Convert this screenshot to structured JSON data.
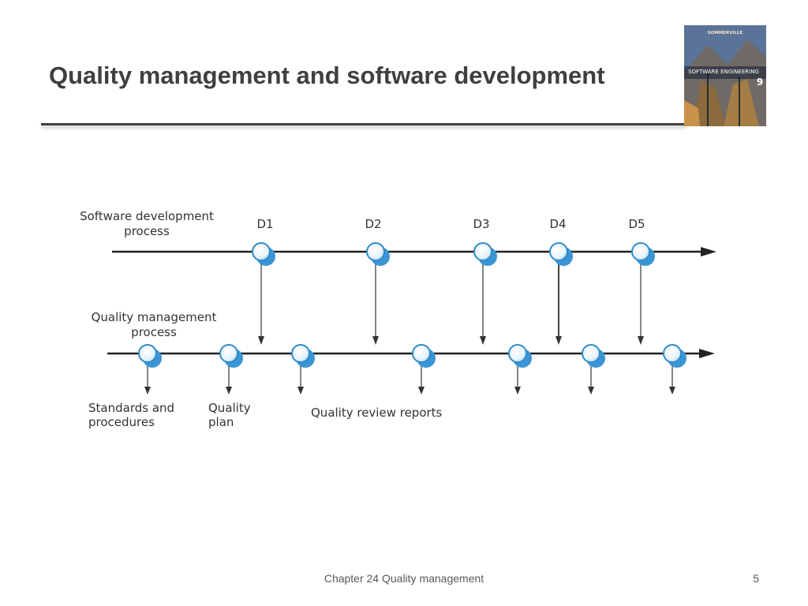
{
  "slide": {
    "title": "Quality management and software development",
    "footer": "Chapter 24 Quality management",
    "page_number": "5"
  },
  "book": {
    "author": "SOMMERVILLE",
    "title": "SOFTWARE ENGINEERING",
    "edition": "9"
  },
  "diagram": {
    "dev_process_label": [
      "Software development",
      "process"
    ],
    "qm_process_label": [
      "Quality management",
      "process"
    ],
    "deliverables": [
      "D1",
      "D2",
      "D3",
      "D4",
      "D5"
    ],
    "output_standards": [
      "Standards and",
      "procedures"
    ],
    "output_plan": [
      "Quality",
      "plan"
    ],
    "output_reports": "Quality review reports"
  }
}
